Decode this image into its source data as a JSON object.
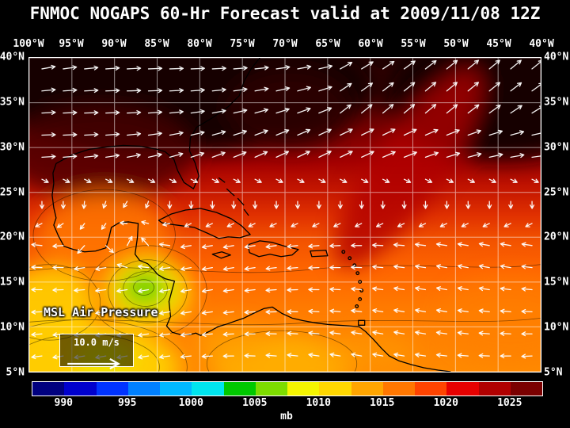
{
  "title": "FNMOC NOGAPS 60-Hr Forecast valid at 2009/11/08 12Z",
  "map": {
    "lon_ticks": [
      "100°W",
      "95°W",
      "90°W",
      "85°W",
      "80°W",
      "75°W",
      "70°W",
      "65°W",
      "60°W",
      "55°W",
      "50°W",
      "45°W",
      "40°W"
    ],
    "lat_ticks": [
      "40°N",
      "35°N",
      "30°N",
      "25°N",
      "20°N",
      "15°N",
      "10°N",
      "5°N"
    ],
    "field_label": "MSL Air Pressure",
    "wind_scale_label": "10.0 m/s"
  },
  "colorbar": {
    "unit": "mb",
    "tick_labels": [
      "990",
      "995",
      "1000",
      "1005",
      "1010",
      "1015",
      "1020",
      "1025"
    ],
    "tick_values": [
      990,
      995,
      1000,
      1005,
      1010,
      1015,
      1020,
      1025
    ],
    "min_value": 987.5,
    "max_value": 1027.5,
    "segment_colors": [
      "#00007f",
      "#0000cd",
      "#0033ff",
      "#0080ff",
      "#00b8ff",
      "#00e5ee",
      "#00c800",
      "#7ddc00",
      "#f5f500",
      "#ffd700",
      "#ffa500",
      "#ff7700",
      "#ff4400",
      "#e60000",
      "#b00000",
      "#7a0000"
    ]
  },
  "style": {
    "background": "#000000",
    "text_color": "#ffffff",
    "grid_color": "#ffffff",
    "coastline_color": "#000000",
    "arrow_color": "#ffffff"
  }
}
